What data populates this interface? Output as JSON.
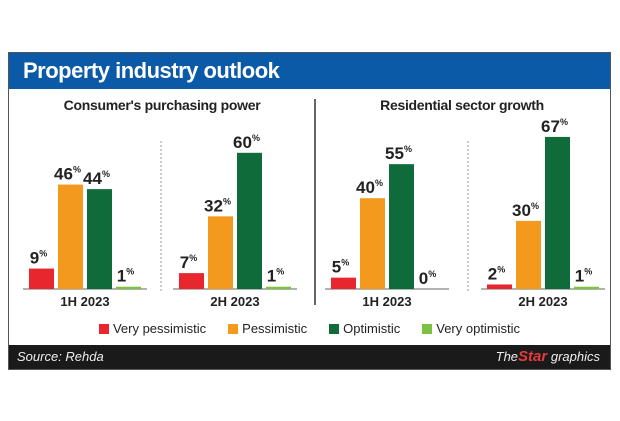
{
  "title": "Property industry outlook",
  "colors": {
    "header": "#0b5aa8",
    "Very pessimistic": "#e8262d",
    "Pessimistic": "#f39a1e",
    "Optimistic": "#0f6b3a",
    "Very optimistic": "#7cc242"
  },
  "legend": [
    "Very pessimistic",
    "Pessimistic",
    "Optimistic",
    "Very optimistic"
  ],
  "footer": {
    "source": "Source: Rehda",
    "logo_the": "The",
    "logo_star": "Star",
    "logo_graphics": "graphics"
  },
  "chart_data": [
    {
      "type": "bar",
      "title": "Consumer's purchasing power",
      "categories": [
        "1H 2023",
        "2H 2023"
      ],
      "unit": "%",
      "series": [
        {
          "name": "Very pessimistic",
          "values": [
            9,
            7
          ]
        },
        {
          "name": "Pessimistic",
          "values": [
            46,
            32
          ]
        },
        {
          "name": "Optimistic",
          "values": [
            44,
            60
          ]
        },
        {
          "name": "Very optimistic",
          "values": [
            1,
            1
          ]
        }
      ]
    },
    {
      "type": "bar",
      "title": "Residential sector growth",
      "categories": [
        "1H 2023",
        "2H 2023"
      ],
      "unit": "%",
      "series": [
        {
          "name": "Very pessimistic",
          "values": [
            5,
            2
          ]
        },
        {
          "name": "Pessimistic",
          "values": [
            40,
            30
          ]
        },
        {
          "name": "Optimistic",
          "values": [
            55,
            67
          ]
        },
        {
          "name": "Very optimistic",
          "values": [
            0,
            1
          ]
        }
      ]
    }
  ]
}
